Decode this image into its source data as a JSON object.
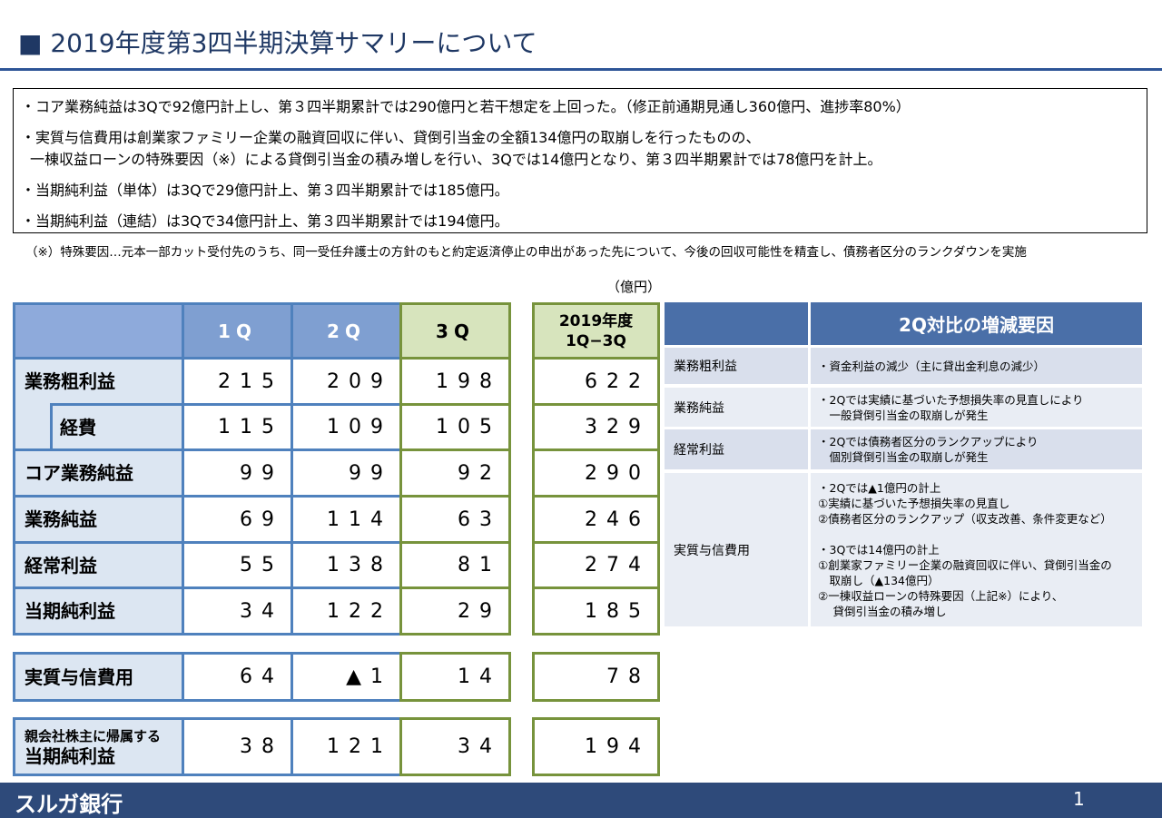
{
  "header": {
    "title": "■ 2019年度第3四半期決算サマリーについて"
  },
  "bullets": [
    {
      "lines": [
        "・コア業務純益は3Qで92億円計上し、第３四半期累計では290億円と若干想定を上回った。（修正前通期見通し360億円、進捗率80%）"
      ]
    },
    {
      "lines": [
        "・実質与信費用は創業家ファミリー企業の融資回収に伴い、貸倒引当金の全額134億円の取崩しを行ったものの、",
        "一棟収益ローンの特殊要因（※）による貸倒引当金の積み増しを行い、3Qでは14億円となり、第３四半期累計では78億円を計上。"
      ]
    },
    {
      "lines": [
        "・当期純利益（単体）は3Qで29億円計上、第３四半期累計では185億円。"
      ]
    },
    {
      "lines": [
        "・当期純利益（連結）は3Qで34億円計上、第３四半期累計では194億円。"
      ]
    }
  ],
  "note": "（※）特殊要因…元本一部カット受付先のうち、同一受任弁護士の方針のもと約定返済停止の申出があった先について、今後の回収可能性を精査し、債務者区分のランクダウンを実施",
  "unit": "（億円）",
  "table": {
    "columns": [
      "1Q",
      "2Q",
      "3Q"
    ],
    "total_header": [
      "2019年度",
      "1Q−3Q"
    ],
    "rows": [
      {
        "label": [
          "業務粗利益"
        ],
        "values": [
          215,
          209,
          198
        ],
        "total": 622
      },
      {
        "label": [
          "経費"
        ],
        "indent": true,
        "values": [
          115,
          109,
          105
        ],
        "total": 329
      },
      {
        "label": [
          "コア業務純益"
        ],
        "values": [
          99,
          99,
          92
        ],
        "total": 290
      },
      {
        "label": [
          "業務純益"
        ],
        "values": [
          69,
          114,
          63
        ],
        "total": 246
      },
      {
        "label": [
          "経常利益"
        ],
        "values": [
          55,
          138,
          81
        ],
        "total": 274
      },
      {
        "label": [
          "当期純利益"
        ],
        "values": [
          34,
          122,
          29
        ],
        "total": 185
      },
      {
        "label": [
          "実質与信費用"
        ],
        "values": [
          64,
          "▲1",
          14
        ],
        "total": 78
      },
      {
        "label": [
          "親会社株主に帰属する",
          "当期純利益"
        ],
        "values": [
          38,
          121,
          34
        ],
        "total": 194
      }
    ]
  },
  "factors": {
    "header": "2Q対比の増減要因",
    "rows": [
      {
        "item": "業務粗利益",
        "lines": [
          "・資金利益の減少（主に貸出金利息の減少）"
        ]
      },
      {
        "item": "業務純益",
        "lines": [
          "・2Qでは実績に基づいた予想損失率の見直しにより",
          "　一般貸倒引当金の取崩しが発生"
        ]
      },
      {
        "item": "経常利益",
        "lines": [
          "・2Qでは債務者区分のランクアップにより",
          "　個別貸倒引当金の取崩しが発生"
        ]
      },
      {
        "item": "実質与信費用",
        "lines": [
          "・2Qでは▲1億円の計上",
          "①実績に基づいた予想損失率の見直し",
          "②債務者区分のランクアップ（収支改善、条件変更など）",
          "",
          "・3Qでは14億円の計上",
          "①創業家ファミリー企業の融資回収に伴い、貸倒引当金の",
          "　取崩し（▲134億円）",
          "②一棟収益ローンの特殊要因（上記※）により、",
          "　 貸倒引当金の積み増し"
        ]
      }
    ]
  },
  "footer": {
    "logo": "スルガ銀行",
    "page": "1"
  }
}
